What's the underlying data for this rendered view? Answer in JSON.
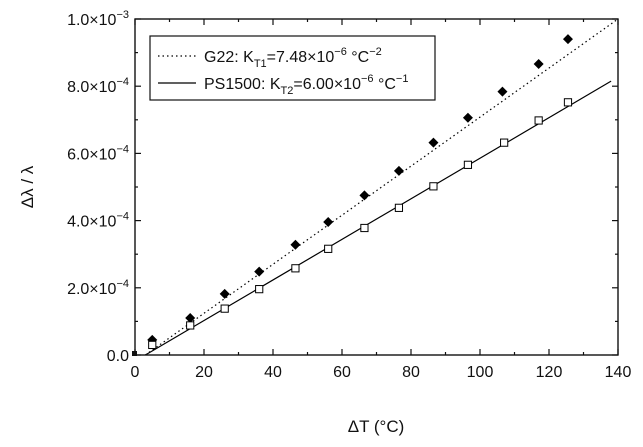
{
  "chart_data": {
    "type": "scatter",
    "xlabel": "ΔT (°C)",
    "ylabel": "Δλ / λ",
    "xlim": [
      0,
      140
    ],
    "ylim": [
      0,
      0.001
    ],
    "x_ticks": [
      {
        "value": 0,
        "label": "0"
      },
      {
        "value": 20,
        "label": "20"
      },
      {
        "value": 40,
        "label": "40"
      },
      {
        "value": 60,
        "label": "60"
      },
      {
        "value": 80,
        "label": "80"
      },
      {
        "value": 100,
        "label": "100"
      },
      {
        "value": 120,
        "label": "120"
      },
      {
        "value": 140,
        "label": "140"
      }
    ],
    "y_ticks": [
      {
        "value": 0,
        "mantissa": "0.0",
        "exponent": ""
      },
      {
        "value": 0.0002,
        "mantissa": "2.0×10",
        "exponent": "−4"
      },
      {
        "value": 0.0004,
        "mantissa": "4.0×10",
        "exponent": "−4"
      },
      {
        "value": 0.0006,
        "mantissa": "6.0×10",
        "exponent": "−4"
      },
      {
        "value": 0.0008,
        "mantissa": "8.0×10",
        "exponent": "−4"
      },
      {
        "value": 0.001,
        "mantissa": "1.0×10",
        "exponent": "−3"
      }
    ],
    "grid": false,
    "legend_position": "top-left",
    "series": [
      {
        "name": "G22: K_T1=7.48×10^-6 °C^-2",
        "legend_parts": [
          {
            "text": "G22: K",
            "style": "normal"
          },
          {
            "text": "T1",
            "style": "sub"
          },
          {
            "text": "=7.48×10",
            "style": "normal"
          },
          {
            "text": "−6",
            "style": "sup"
          },
          {
            "text": " °C",
            "style": "normal"
          },
          {
            "text": "−2",
            "style": "sup"
          }
        ],
        "marker": "filled-diamond",
        "fit_line": "dotted",
        "fit_start": [
          3,
          0
        ],
        "fit_end": [
          140,
          0.001
        ],
        "color": "#000000",
        "x": [
          5,
          16,
          26,
          36,
          46.5,
          56,
          66.5,
          76.5,
          86.5,
          96.5,
          106.5,
          117,
          125.5
        ],
        "y": [
          4.5e-05,
          0.00011,
          0.000182,
          0.000248,
          0.000328,
          0.000396,
          0.000475,
          0.000548,
          0.000632,
          0.000706,
          0.000784,
          0.000866,
          0.00094
        ]
      },
      {
        "name": "PS1500: K_T2=6.00×10^-6 °C^-1",
        "legend_parts": [
          {
            "text": "PS1500: K",
            "style": "normal"
          },
          {
            "text": "T2",
            "style": "sub"
          },
          {
            "text": "=6.00×10",
            "style": "normal"
          },
          {
            "text": "−6",
            "style": "sup"
          },
          {
            "text": " °C",
            "style": "normal"
          },
          {
            "text": "−1",
            "style": "sup"
          }
        ],
        "marker": "open-square",
        "fit_line": "solid",
        "fit_start": [
          3,
          0
        ],
        "fit_end": [
          138,
          0.000815
        ],
        "color": "#000000",
        "x": [
          5,
          16,
          26,
          36,
          46.5,
          56,
          66.5,
          76.5,
          86.5,
          96.5,
          107,
          117,
          125.5
        ],
        "y": [
          3e-05,
          8.8e-05,
          0.000138,
          0.000196,
          0.000258,
          0.000316,
          0.000378,
          0.000438,
          0.000502,
          0.000566,
          0.000632,
          0.000698,
          0.000752
        ]
      }
    ],
    "extra_points": [
      {
        "x": 0,
        "y": 0,
        "marker": "small-filled-square"
      }
    ]
  }
}
